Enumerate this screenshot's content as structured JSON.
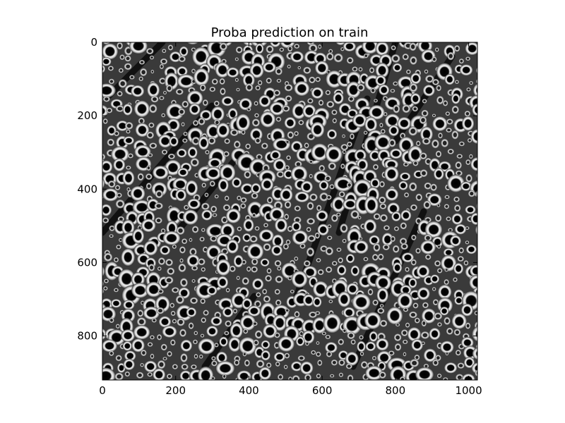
{
  "chart_data": {
    "type": "heatmap",
    "title": "Proba prediction on train",
    "xlabel": "",
    "ylabel": "",
    "xlim": [
      0,
      1024
    ],
    "ylim": [
      920,
      0
    ],
    "x_ticks": [
      0,
      200,
      400,
      600,
      800,
      1000
    ],
    "y_ticks": [
      0,
      200,
      400,
      600,
      800
    ],
    "x_tick_labels": [
      "0",
      "200",
      "400",
      "600",
      "800",
      "1000"
    ],
    "y_tick_labels": [
      "0",
      "200",
      "400",
      "600",
      "800"
    ],
    "colormap": "gray",
    "grid": false,
    "content": "grayscale probability map showing bright ring-shaped cell boundaries around dark interiors"
  },
  "colors": {
    "background": "#ffffff",
    "image_dark": "#000000",
    "ring_bright": "#f2f2f2",
    "ring_mid": "#9a9a9a",
    "frame": "#000000"
  }
}
